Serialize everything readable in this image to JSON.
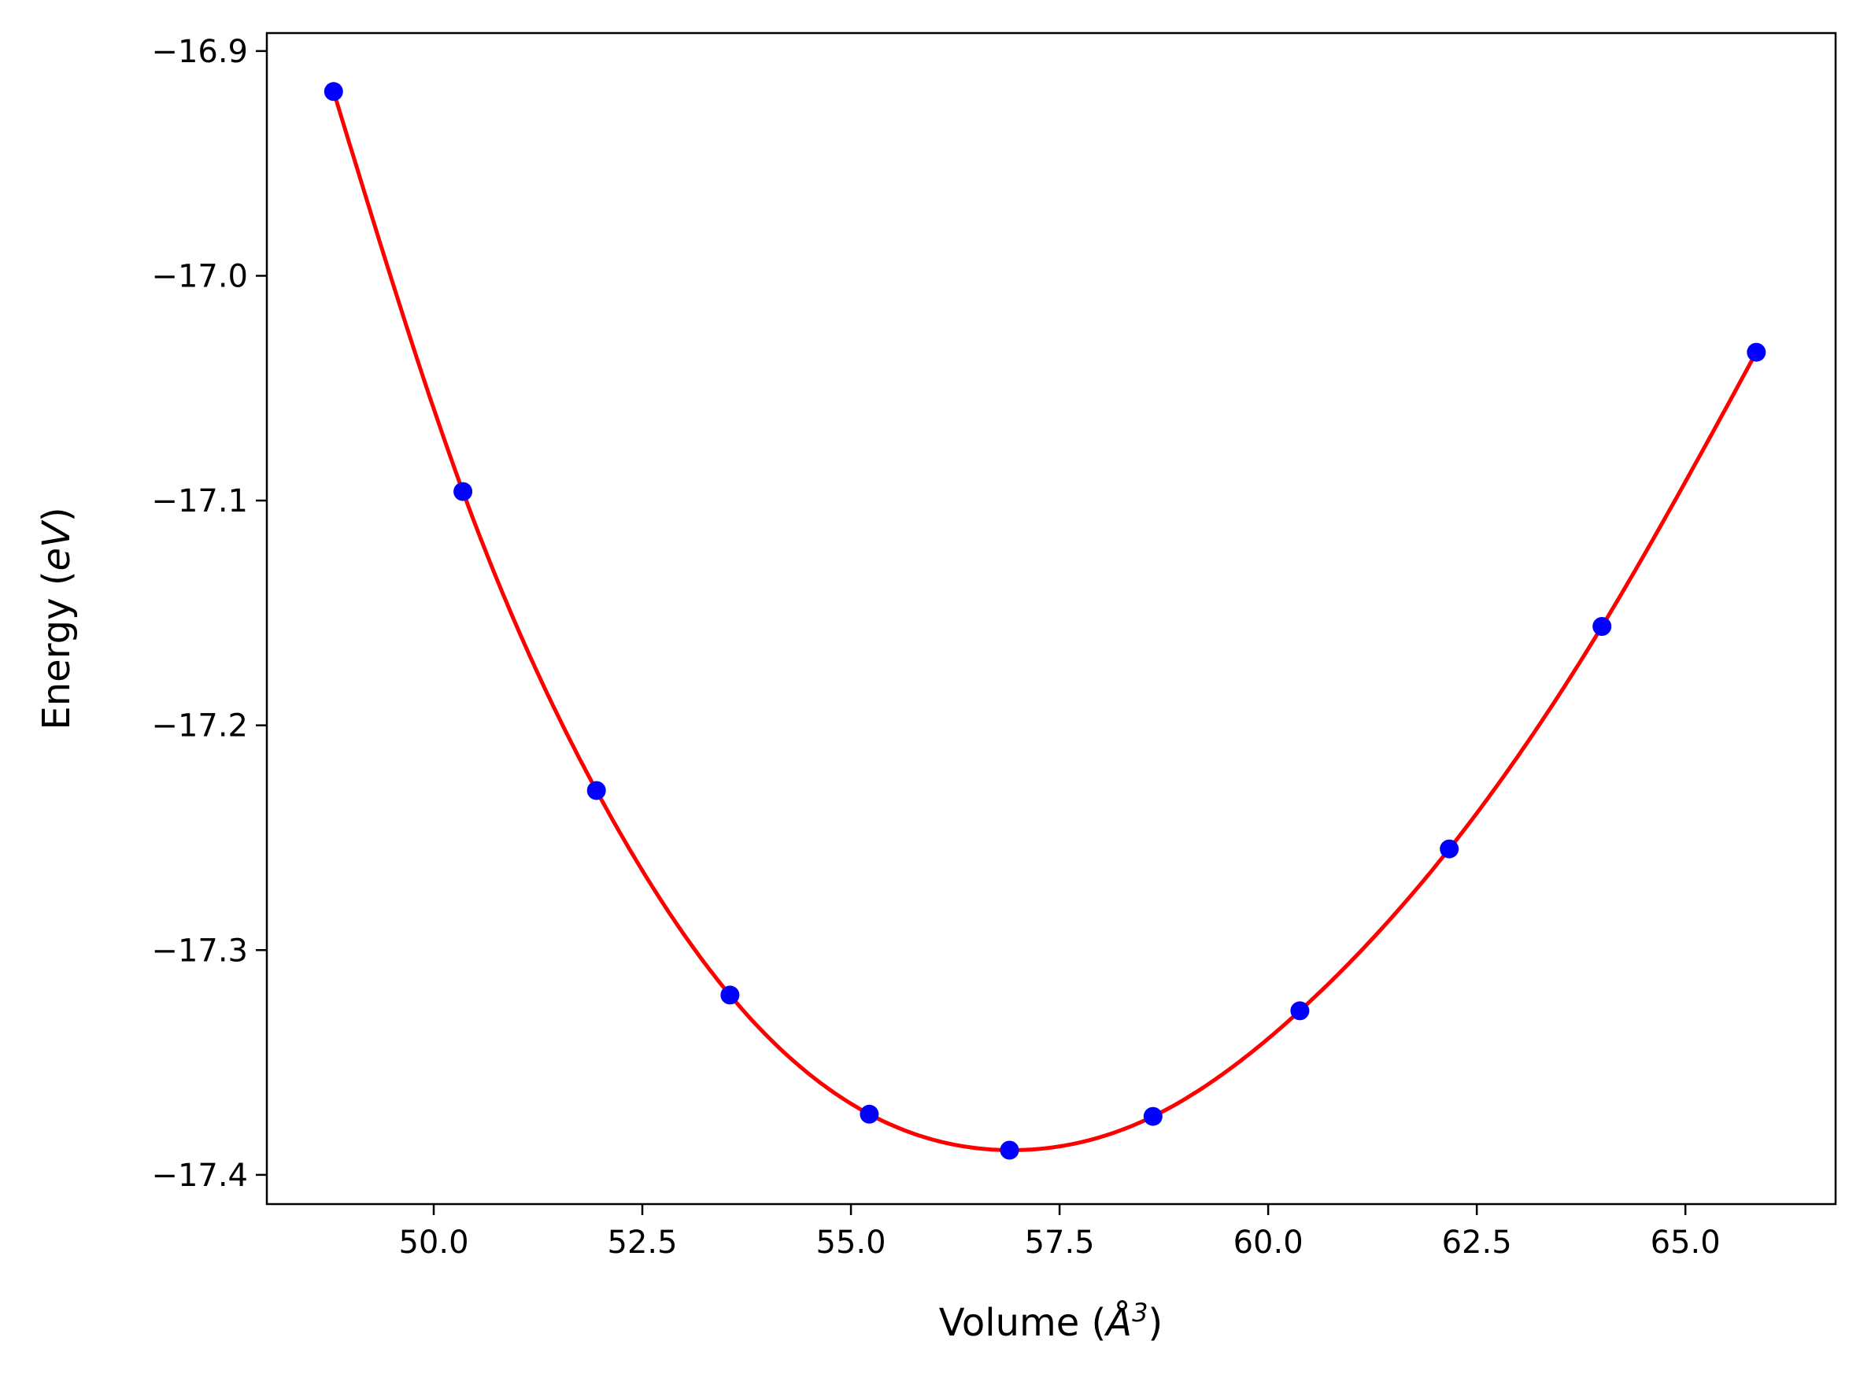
{
  "chart_data": {
    "type": "line",
    "title": "",
    "xlabel": {
      "main": "Volume (",
      "symbol": "Å",
      "exponent": "3",
      "close": ")"
    },
    "ylabel": {
      "main": "Energy (",
      "italic": "eV",
      "close": ")"
    },
    "xlim": [
      48.0,
      66.8
    ],
    "ylim": [
      -17.413,
      -16.892
    ],
    "xticks": [
      50.0,
      52.5,
      55.0,
      57.5,
      60.0,
      62.5,
      65.0
    ],
    "xtick_labels": [
      "50.0",
      "52.5",
      "55.0",
      "57.5",
      "60.0",
      "62.5",
      "65.0"
    ],
    "yticks": [
      -16.9,
      -17.0,
      -17.1,
      -17.2,
      -17.3,
      -17.4
    ],
    "ytick_labels": [
      "−16.9",
      "−17.0",
      "−17.1",
      "−17.2",
      "−17.3",
      "−17.4"
    ],
    "grid": false,
    "series": [
      {
        "kind": "scatter",
        "color": "#0000ff",
        "x": [
          48.8,
          50.35,
          51.95,
          53.55,
          55.22,
          56.9,
          58.62,
          60.38,
          62.17,
          64.0,
          65.85
        ],
        "y": [
          -16.918,
          -17.096,
          -17.229,
          -17.32,
          -17.373,
          -17.389,
          -17.374,
          -17.327,
          -17.255,
          -17.156,
          -17.034
        ]
      },
      {
        "kind": "line",
        "color": "#ff0000",
        "x": [
          48.8,
          50.35,
          51.95,
          53.55,
          55.22,
          56.9,
          58.62,
          60.38,
          62.17,
          64.0,
          65.85
        ],
        "y": [
          -16.918,
          -17.096,
          -17.229,
          -17.32,
          -17.373,
          -17.389,
          -17.374,
          -17.327,
          -17.255,
          -17.156,
          -17.034
        ]
      }
    ]
  }
}
